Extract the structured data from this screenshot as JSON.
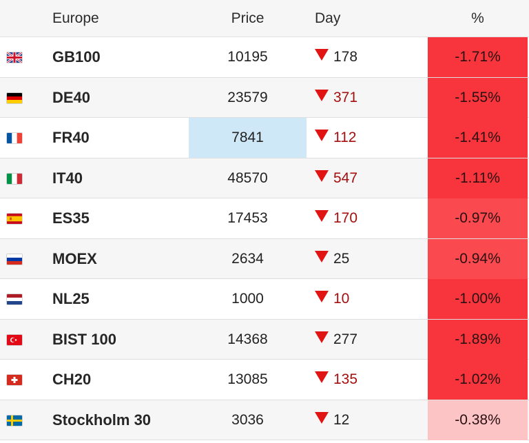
{
  "header": {
    "region": "Europe",
    "price": "Price",
    "day": "Day",
    "percent": "%"
  },
  "rows": [
    {
      "name": "GB100",
      "flag": "uk-flag-icon",
      "price": "10195",
      "day": "178",
      "pct": "-1.71%",
      "pct_color": "#f8353d",
      "day_color": "dark",
      "highlighted": false
    },
    {
      "name": "DE40",
      "flag": "germany-flag-icon",
      "price": "23579",
      "day": "371",
      "pct": "-1.55%",
      "pct_color": "#f8353d",
      "day_color": "red",
      "highlighted": false
    },
    {
      "name": "FR40",
      "flag": "france-flag-icon",
      "price": "7841",
      "day": "112",
      "pct": "-1.41%",
      "pct_color": "#f8353d",
      "day_color": "red",
      "highlighted": true
    },
    {
      "name": "IT40",
      "flag": "italy-flag-icon",
      "price": "48570",
      "day": "547",
      "pct": "-1.11%",
      "pct_color": "#f8353d",
      "day_color": "red",
      "highlighted": false
    },
    {
      "name": "ES35",
      "flag": "spain-flag-icon",
      "price": "17453",
      "day": "170",
      "pct": "-0.97%",
      "pct_color": "#fa494f",
      "day_color": "red",
      "highlighted": false
    },
    {
      "name": "MOEX",
      "flag": "russia-flag-icon",
      "price": "2634",
      "day": "25",
      "pct": "-0.94%",
      "pct_color": "#fa494f",
      "day_color": "dark",
      "highlighted": false
    },
    {
      "name": "NL25",
      "flag": "netherlands-flag-icon",
      "price": "1000",
      "day": "10",
      "pct": "-1.00%",
      "pct_color": "#f8353d",
      "day_color": "red",
      "highlighted": false
    },
    {
      "name": "BIST 100",
      "flag": "turkey-flag-icon",
      "price": "14368",
      "day": "277",
      "pct": "-1.89%",
      "pct_color": "#f8353d",
      "day_color": "dark",
      "highlighted": false
    },
    {
      "name": "CH20",
      "flag": "switzerland-flag-icon",
      "price": "13085",
      "day": "135",
      "pct": "-1.02%",
      "pct_color": "#f8353d",
      "day_color": "red",
      "highlighted": false
    },
    {
      "name": "Stockholm 30",
      "flag": "sweden-flag-icon",
      "price": "3036",
      "day": "12",
      "pct": "-0.38%",
      "pct_color": "#fdc4c5",
      "day_color": "dark",
      "highlighted": false
    }
  ]
}
